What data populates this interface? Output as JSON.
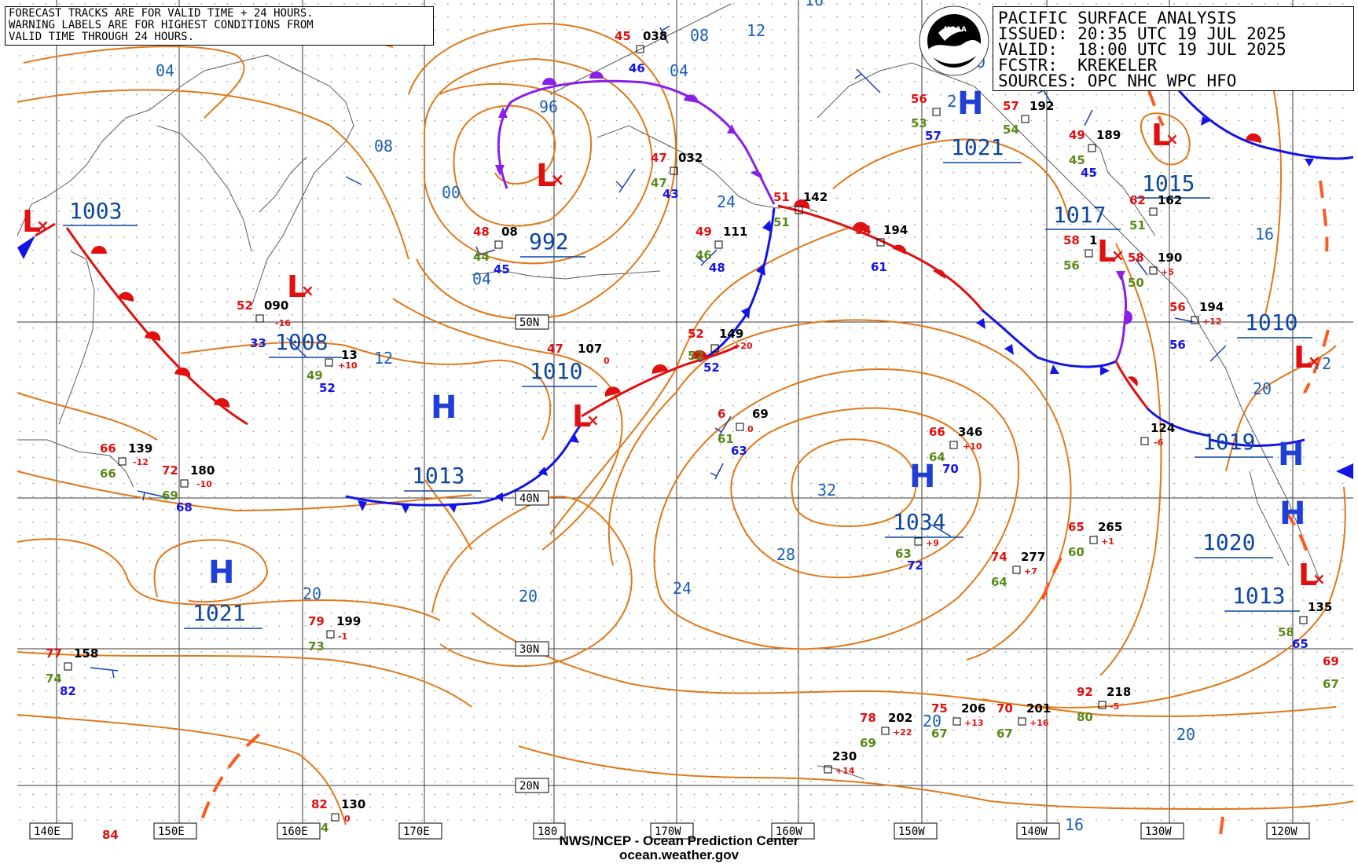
{
  "warning_box": {
    "lines": [
      "FORECAST TRACKS ARE FOR VALID TIME + 24 HOURS.",
      "WARNING LABELS ARE FOR HIGHEST CONDITIONS FROM",
      "VALID TIME THROUGH 24 HOURS."
    ]
  },
  "info_box": {
    "title": "PACIFIC SURFACE ANALYSIS",
    "issued": "ISSUED: 20:35 UTC 19 JUL 2025",
    "valid": "VALID:  18:00 UTC 19 JUL 2025",
    "fcstr": "FCSTR:  KREKELER",
    "sources": "SOURCES: OPC NHC WPC HFO"
  },
  "logo": {
    "label": "NOAA",
    "icon": "noaa-logo-icon"
  },
  "footer": {
    "line1": "NWS/NCEP - Ocean Prediction Center",
    "line2": "ocean.weather.gov"
  },
  "colors": {
    "isobar": "#e07818",
    "isobar_label": "#1a5fb4",
    "pressure_label": "#0d47a1",
    "high": "#1f3fd6",
    "low": "#e01010",
    "cold_front": "#1414e6",
    "warm_front": "#e01010",
    "occluded_front": "#8a20e8",
    "coast": "#555555",
    "grid": "#444444",
    "dew_point": "#5a8a1a",
    "temperature": "#e01010"
  },
  "longitude_labels": [
    "140E",
    "150E",
    "160E",
    "170E",
    "180",
    "170W",
    "160W",
    "150W",
    "140W",
    "130W",
    "120W"
  ],
  "latitude_labels": [
    "50N",
    "40N",
    "30N",
    "20N"
  ],
  "pressure_centers": [
    {
      "type": "L",
      "value": "1003",
      "lon": 140.5,
      "lat": 52.3
    },
    {
      "type": "L",
      "value": "992",
      "lon": 178.2,
      "lat": 55.3
    },
    {
      "type": "L",
      "value": "1008",
      "lon": 159.8,
      "lat": 47.5
    },
    {
      "type": "L",
      "value": "1010",
      "lon": 182.5,
      "lat": 43.5
    },
    {
      "type": "L",
      "value": "1017",
      "lon": 226.3,
      "lat": 51.3
    },
    {
      "type": "L",
      "value": "1015",
      "lon": 230.7,
      "lat": 56.6
    },
    {
      "type": "L",
      "value": "1010",
      "lon": 238.4,
      "lat": 46.8
    },
    {
      "type": "L",
      "value": "1013",
      "lon": 238.9,
      "lat": 32.8
    },
    {
      "type": "H",
      "value": "1021",
      "lon": 152.2,
      "lat": 34.0
    },
    {
      "type": "H",
      "value": "1013",
      "lon": 171.8,
      "lat": 42.8
    },
    {
      "type": "H",
      "value": "1021",
      "lon": 209.0,
      "lat": 58.0
    },
    {
      "type": "H",
      "value": "1034",
      "lon": 210.0,
      "lat": 39.8
    },
    {
      "type": "H",
      "value": "1019",
      "lon": 237.6,
      "lat": 39.9
    },
    {
      "type": "H",
      "value": "1020",
      "lon": 237.6,
      "lat": 36.0
    }
  ],
  "isobar_labels": [
    "04",
    "08",
    "12",
    "16",
    "08",
    "04",
    "00",
    "96",
    "04",
    "12",
    "20",
    "20",
    "24",
    "28",
    "32",
    "20",
    "16",
    "16",
    "20",
    "24",
    "20",
    "20",
    ".2"
  ],
  "stations": [
    {
      "temp": "45",
      "dew": "",
      "sst": "",
      "id": "038",
      "tend": ""
    },
    {
      "temp": "",
      "dew": "",
      "sst": "46",
      "id": "",
      "tend": ""
    },
    {
      "temp": "47",
      "dew": "47",
      "sst": "43",
      "id": "032",
      "tend": ""
    },
    {
      "temp": "48",
      "dew": "44",
      "sst": "45",
      "id": "08",
      "tend": ""
    },
    {
      "temp": "49",
      "dew": "46",
      "sst": "48",
      "id": "111",
      "tend": ""
    },
    {
      "temp": "52",
      "dew": "",
      "sst": "33",
      "id": "090",
      "tend": "-16"
    },
    {
      "temp": "",
      "dew": "49",
      "sst": "52",
      "id": "13",
      "tend": "+10"
    },
    {
      "temp": "47",
      "dew": "",
      "sst": "",
      "id": "107",
      "tend": "0"
    },
    {
      "temp": "52",
      "dew": "52",
      "sst": "52",
      "id": "149",
      "tend": "+20"
    },
    {
      "temp": "6",
      "dew": "61",
      "sst": "63",
      "id": "69",
      "tend": "0"
    },
    {
      "temp": "66",
      "dew": "66",
      "sst": "",
      "id": "139",
      "tend": "-12"
    },
    {
      "temp": "72",
      "dew": "69",
      "sst": "68",
      "id": "180",
      "tend": "-10"
    },
    {
      "temp": "77",
      "dew": "74",
      "sst": "82",
      "id": "158",
      "tend": ""
    },
    {
      "temp": "79",
      "dew": "73",
      "sst": "",
      "id": "199",
      "tend": "-1"
    },
    {
      "temp": "82",
      "dew": "4",
      "sst": "",
      "id": "130",
      "tend": "0"
    },
    {
      "temp": "56",
      "dew": "53",
      "sst": "57",
      "id": "2",
      "tend": ""
    },
    {
      "temp": "57",
      "dew": "54",
      "sst": "",
      "id": "192",
      "tend": ""
    },
    {
      "temp": "49",
      "dew": "45",
      "sst": "45",
      "id": "189",
      "tend": ""
    },
    {
      "temp": "62",
      "dew": "51",
      "sst": "",
      "id": "162",
      "tend": ""
    },
    {
      "temp": "58",
      "dew": "56",
      "sst": "",
      "id": "1",
      "tend": ""
    },
    {
      "temp": "58",
      "dew": "50",
      "sst": "",
      "id": "190",
      "tend": "+5"
    },
    {
      "temp": "56",
      "dew": "",
      "sst": "56",
      "id": "194",
      "tend": "+12"
    },
    {
      "temp": "51",
      "dew": "51",
      "sst": "",
      "id": "142",
      "tend": ""
    },
    {
      "temp": "54",
      "dew": "",
      "sst": "61",
      "id": "194",
      "tend": ""
    },
    {
      "temp": "66",
      "dew": "64",
      "sst": "70",
      "id": "346",
      "tend": "+10"
    },
    {
      "temp": "",
      "dew": "63",
      "sst": "72",
      "id": "",
      "tend": "+9"
    },
    {
      "temp": "65",
      "dew": "60",
      "sst": "",
      "id": "265",
      "tend": "+1"
    },
    {
      "temp": "74",
      "dew": "64",
      "sst": "",
      "id": "277",
      "tend": "+7"
    },
    {
      "temp": "",
      "dew": "",
      "sst": "",
      "id": "124",
      "tend": "-6"
    },
    {
      "temp": "",
      "dew": "58",
      "sst": "65",
      "id": "135",
      "tend": ""
    },
    {
      "temp": "78",
      "dew": "69",
      "sst": "",
      "id": "202",
      "tend": "+22"
    },
    {
      "temp": "75",
      "dew": "67",
      "sst": "",
      "id": "206",
      "tend": "+13"
    },
    {
      "temp": "70",
      "dew": "67",
      "sst": "",
      "id": "201",
      "tend": "+16"
    },
    {
      "temp": "92",
      "dew": "80",
      "sst": "",
      "id": "218",
      "tend": "-5"
    },
    {
      "temp": "",
      "dew": "",
      "sst": "",
      "id": "230",
      "tend": "+14"
    }
  ],
  "misc_labels": [
    "84",
    "69",
    "67",
    "5",
    "7",
    "8",
    "60"
  ]
}
